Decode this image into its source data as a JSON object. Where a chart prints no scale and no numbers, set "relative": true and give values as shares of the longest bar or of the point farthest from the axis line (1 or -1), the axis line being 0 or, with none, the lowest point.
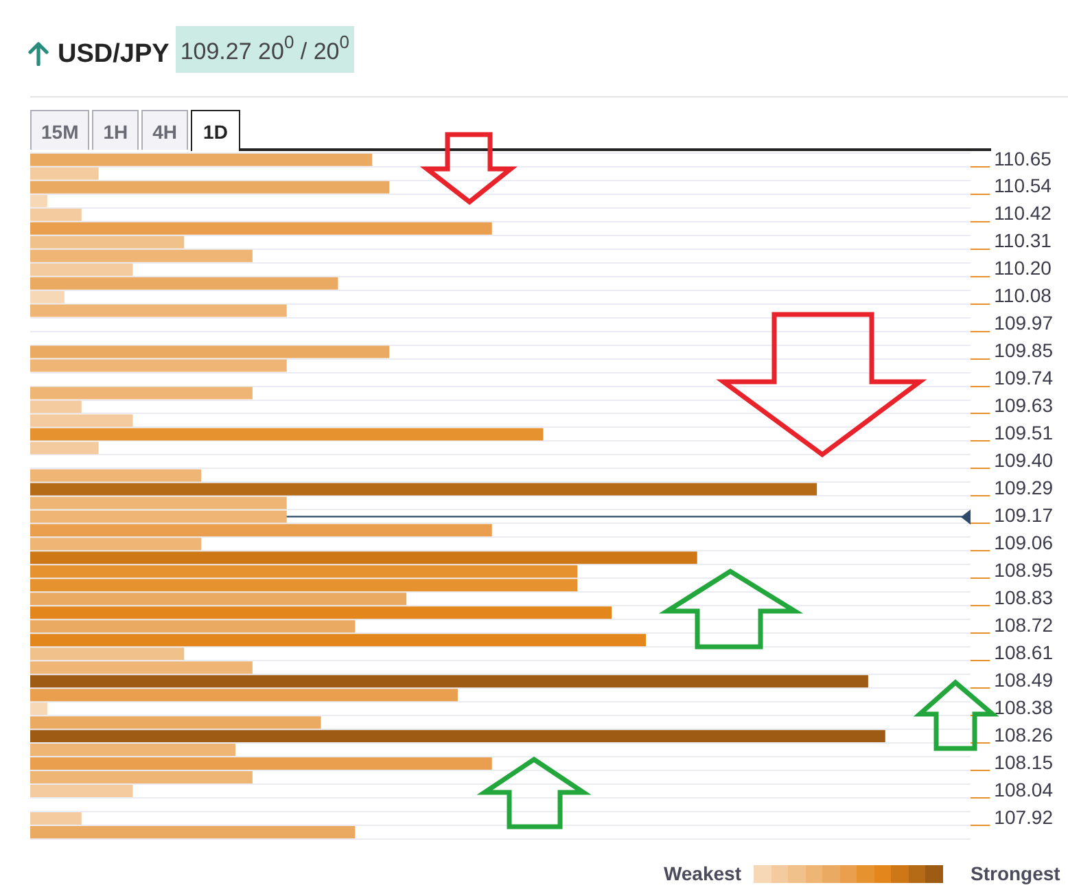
{
  "chart_data": {
    "type": "bar",
    "orientation": "horizontal",
    "relative": true,
    "title": "USD/JPY",
    "subtitle": "109.27 20$^{0}$ / 20$^{0}$",
    "categories": [
      "110.65",
      null,
      "110.54",
      null,
      "110.42",
      null,
      "110.31",
      null,
      "110.20",
      null,
      "110.08",
      null,
      "109.97",
      null,
      "109.85",
      null,
      "109.74",
      null,
      "109.63",
      null,
      "109.51",
      null,
      "109.40",
      null,
      "109.29",
      null,
      "109.17",
      null,
      "109.06",
      null,
      "108.95",
      null,
      "108.83",
      null,
      "108.72",
      null,
      "108.61",
      null,
      "108.49",
      null,
      "108.38",
      null,
      "108.26",
      null,
      "108.15",
      null,
      "108.04",
      null,
      "107.92",
      null
    ],
    "values": [
      0.4,
      0.08,
      0.42,
      0.02,
      0.06,
      0.54,
      0.18,
      0.26,
      0.12,
      0.36,
      0.04,
      0.3,
      null,
      null,
      0.42,
      0.3,
      null,
      0.26,
      0.06,
      0.12,
      0.6,
      0.08,
      null,
      0.2,
      0.92,
      0.3,
      0.3,
      0.54,
      0.2,
      0.78,
      0.64,
      0.64,
      0.44,
      0.68,
      0.38,
      0.72,
      0.18,
      0.26,
      0.98,
      0.5,
      0.02,
      0.34,
      1,
      0.24,
      0.54,
      0.26,
      0.12,
      null,
      0.06,
      0.38
    ],
    "colors": [
      "#ebaa62",
      "#f3cb9f",
      "#ebaa62",
      "#f6d8b6",
      "#f3cb9f",
      "#e99f4e",
      "#f1c18b",
      "#eeb574",
      "#f3cb9f",
      "#ebaa62",
      "#f6d8b6",
      "#eeb574",
      null,
      null,
      "#ebaa62",
      "#eeb574",
      null,
      "#eeb574",
      "#f3cb9f",
      "#f3cb9f",
      "#e6932f",
      "#f3cb9f",
      null,
      "#eeb574",
      "#b56a16",
      "#eeb574",
      "#eeb574",
      "#e99f4e",
      "#eeb574",
      "#cd7717",
      "#e6932f",
      "#e6932f",
      "#ebaa62",
      "#e3861b",
      "#ebaa62",
      "#e3861b",
      "#f1c18b",
      "#eeb574",
      "#9e5b13",
      "#e99f4e",
      "#f6d8b6",
      "#ebaa62",
      "#9e5b13",
      "#eeb574",
      "#e99f4e",
      "#eeb574",
      "#f3cb9f",
      null,
      "#f3cb9f",
      "#ebaa62"
    ],
    "grid": "y",
    "ref_lines": [
      {
        "axis": "y",
        "value": "109.17",
        "color": "#2d4a6b"
      }
    ],
    "annotations": [
      "15M",
      "1H",
      "4H",
      "1D",
      "Weakest",
      "Strongest"
    ]
  }
}
